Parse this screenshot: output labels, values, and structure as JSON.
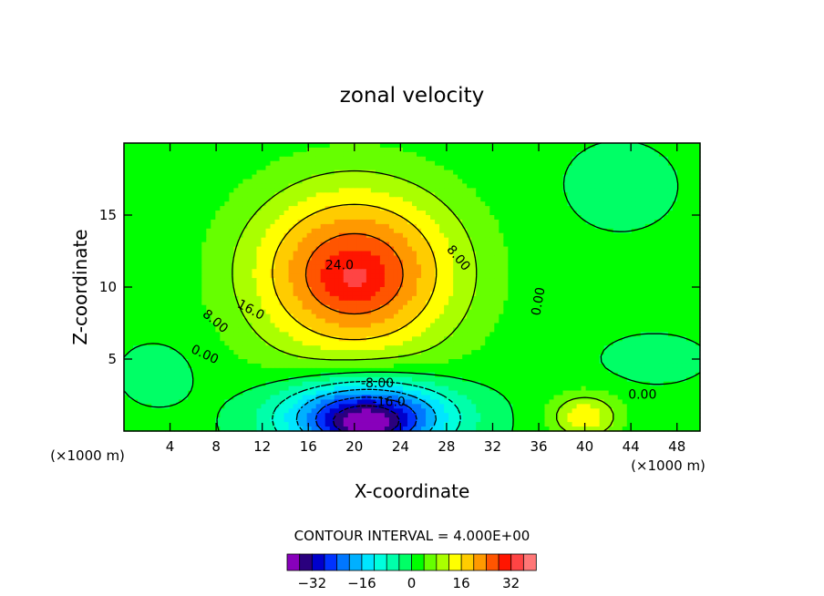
{
  "chart_data": {
    "type": "contour",
    "title": "zonal velocity",
    "xlabel": "X-coordinate",
    "ylabel": "Z-coordinate",
    "x_unit": "(×1000 m)",
    "xlim": [
      0,
      50
    ],
    "ylim": [
      0,
      20
    ],
    "xticks": [
      4,
      8,
      12,
      16,
      20,
      24,
      28,
      32,
      36,
      40,
      44,
      48
    ],
    "yticks": [
      5,
      10,
      15
    ],
    "contour_interval_text": "CONTOUR INTERVAL = 4.000E+00",
    "contour_labels": [
      {
        "text": "24.0",
        "x": 18.7,
        "z": 11.5,
        "rot": 0
      },
      {
        "text": "16.0",
        "x": 11.0,
        "z": 8.4,
        "rot": 28
      },
      {
        "text": "8.00",
        "x": 7.9,
        "z": 7.6,
        "rot": 40
      },
      {
        "text": "0.00",
        "x": 7.0,
        "z": 5.3,
        "rot": 25
      },
      {
        "text": "8.00",
        "x": 29.0,
        "z": 12.0,
        "rot": 50
      },
      {
        "text": "0.00",
        "x": 36.0,
        "z": 9.0,
        "rot": -80
      },
      {
        "text": "-8.00",
        "x": 22.0,
        "z": 3.3,
        "rot": 0
      },
      {
        "text": "-16.0",
        "x": 23.0,
        "z": 2.0,
        "rot": 0
      },
      {
        "text": "0.00",
        "x": 45.0,
        "z": 2.5,
        "rot": 0
      }
    ],
    "colorbar": {
      "levels": [
        -40,
        -36,
        -32,
        -28,
        -24,
        -20,
        -16,
        -12,
        -8,
        -4,
        0,
        4,
        8,
        12,
        16,
        20,
        24,
        28,
        32,
        36,
        40
      ],
      "colors": [
        "#8800bb",
        "#2a007e",
        "#0000cc",
        "#0033ff",
        "#0077ff",
        "#00b0ff",
        "#00e6ff",
        "#00ffdd",
        "#00ffaa",
        "#00ff66",
        "#00ff00",
        "#66ff00",
        "#aaff00",
        "#ffff00",
        "#ffcc00",
        "#ff9900",
        "#ff5500",
        "#ff1500",
        "#ff4444",
        "#ff7777"
      ],
      "tick_labels": [
        "-32",
        "-16",
        "0",
        "16",
        "32"
      ],
      "tick_values": [
        -32,
        -16,
        0,
        16,
        32
      ]
    },
    "field": {
      "background": 1,
      "features": [
        {
          "x": 20,
          "z": 11,
          "sx": 9,
          "sz": 6,
          "amp": 28
        },
        {
          "x": 20,
          "z": 10.5,
          "sx": 3,
          "sz": 1.8,
          "amp": 4
        },
        {
          "x": 21,
          "z": 1,
          "sx": 7,
          "sz": 2.5,
          "amp": -38
        },
        {
          "x": 21,
          "z": 0.3,
          "sx": 3,
          "sz": 1,
          "amp": -8
        },
        {
          "x": 43,
          "z": 17,
          "sx": 4,
          "sz": 2.5,
          "amp": -5
        },
        {
          "x": 40,
          "z": 1,
          "sx": 3,
          "sz": 1.6,
          "amp": 14
        },
        {
          "x": 3,
          "z": 4,
          "sx": 3,
          "sz": 2,
          "amp": -4
        },
        {
          "x": 46,
          "z": 5,
          "sx": 4,
          "sz": 1.5,
          "amp": -4
        }
      ]
    }
  }
}
